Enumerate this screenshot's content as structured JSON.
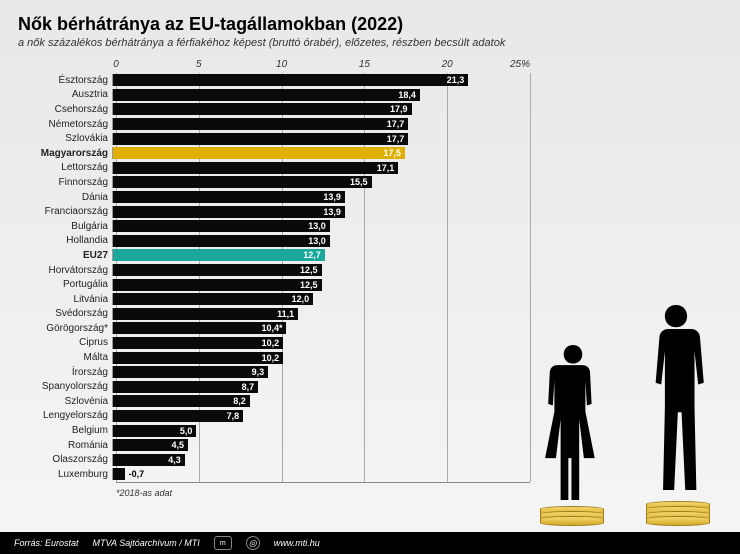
{
  "title": "Nők bérhátránya az EU-tagállamokban (2022)",
  "subtitle": "a nők százalékos bérhátránya a férfiakéhoz képest (bruttó órabér), előzetes, részben becsült adatok",
  "footnote": "*2018-as adat",
  "footer": {
    "source": "Forrás: Eurostat",
    "archive": "MTVA Sajtóarchívum / MTI",
    "url": "www.mti.hu"
  },
  "chart": {
    "type": "bar",
    "xmax": 25,
    "ticks": [
      0,
      5,
      10,
      15,
      20,
      25
    ],
    "tick_suffix_last": "%",
    "grid_color": "#aaaaaa",
    "default_bar_color": "#0a0a0a",
    "value_text_color": "#ffffff",
    "label_fontsize": 10,
    "value_fontsize": 9,
    "countries": [
      {
        "name": "Észtország",
        "value": 21.3,
        "label": "21,3"
      },
      {
        "name": "Ausztria",
        "value": 18.4,
        "label": "18,4"
      },
      {
        "name": "Csehország",
        "value": 17.9,
        "label": "17,9"
      },
      {
        "name": "Németország",
        "value": 17.7,
        "label": "17,7"
      },
      {
        "name": "Szlovákia",
        "value": 17.7,
        "label": "17,7"
      },
      {
        "name": "Magyarország",
        "value": 17.5,
        "label": "17,5",
        "bold": true,
        "color": "#e0b000"
      },
      {
        "name": "Lettország",
        "value": 17.1,
        "label": "17,1"
      },
      {
        "name": "Finnország",
        "value": 15.5,
        "label": "15,5"
      },
      {
        "name": "Dánia",
        "value": 13.9,
        "label": "13,9"
      },
      {
        "name": "Franciaország",
        "value": 13.9,
        "label": "13,9"
      },
      {
        "name": "Bulgária",
        "value": 13.0,
        "label": "13,0"
      },
      {
        "name": "Hollandia",
        "value": 13.0,
        "label": "13,0"
      },
      {
        "name": "EU27",
        "value": 12.7,
        "label": "12,7",
        "bold": true,
        "color": "#1aa89c"
      },
      {
        "name": "Horvátország",
        "value": 12.5,
        "label": "12,5"
      },
      {
        "name": "Portugália",
        "value": 12.5,
        "label": "12,5"
      },
      {
        "name": "Litvánia",
        "value": 12.0,
        "label": "12,0"
      },
      {
        "name": "Svédország",
        "value": 11.1,
        "label": "11,1"
      },
      {
        "name": "Görögország*",
        "value": 10.4,
        "label": "10,4*"
      },
      {
        "name": "Ciprus",
        "value": 10.2,
        "label": "10,2"
      },
      {
        "name": "Málta",
        "value": 10.2,
        "label": "10,2"
      },
      {
        "name": "Írország",
        "value": 9.3,
        "label": "9,3"
      },
      {
        "name": "Spanyolország",
        "value": 8.7,
        "label": "8,7"
      },
      {
        "name": "Szlovénia",
        "value": 8.2,
        "label": "8,2"
      },
      {
        "name": "Lengyelország",
        "value": 7.8,
        "label": "7,8"
      },
      {
        "name": "Belgium",
        "value": 5.0,
        "label": "5,0"
      },
      {
        "name": "Románia",
        "value": 4.5,
        "label": "4,5"
      },
      {
        "name": "Olaszország",
        "value": 4.3,
        "label": "4,3"
      },
      {
        "name": "Luxemburg",
        "value": -0.7,
        "label": "-0,7",
        "outside": true
      }
    ]
  },
  "illustration": {
    "woman_coin_count": 3,
    "man_coin_count": 4,
    "coin_color_top": "#f5d970",
    "coin_color_bottom": "#d4a828",
    "silhouette_color": "#000000"
  }
}
